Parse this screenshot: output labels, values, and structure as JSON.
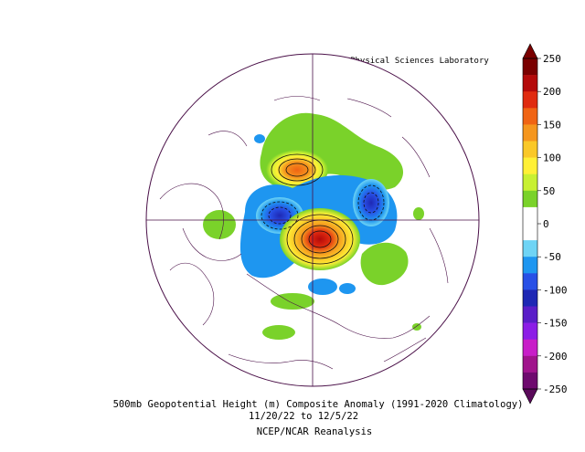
{
  "header": {
    "lab": "NOAA Physical Sciences Laboratory"
  },
  "caption": {
    "line1": "500mb Geopotential Height (m) Composite Anomaly (1991-2020 Climatology)",
    "line2": "11/20/22  to 12/5/22",
    "line3": "NCEP/NCAR Reanalysis"
  },
  "colorbar": {
    "ticks": [
      "250",
      "200",
      "150",
      "100",
      "50",
      "0",
      "-50",
      "-100",
      "-150",
      "-200",
      "-250"
    ],
    "colors": [
      "#7a0000",
      "#b40a0a",
      "#e02b10",
      "#f06414",
      "#f5961e",
      "#fac828",
      "#fff036",
      "#c8f032",
      "#7ad22a",
      "#ffffff",
      "#ffffff",
      "#6fd4f5",
      "#1e96f0",
      "#2850e6",
      "#1e28b4",
      "#5a1ec8",
      "#8c1ee6",
      "#c81ec8",
      "#a0148c",
      "#6e0a6e"
    ]
  },
  "colors": {
    "map_lines": "#4a1048",
    "positive_core": "#d2281e",
    "negative_core": "#1e28c8"
  }
}
